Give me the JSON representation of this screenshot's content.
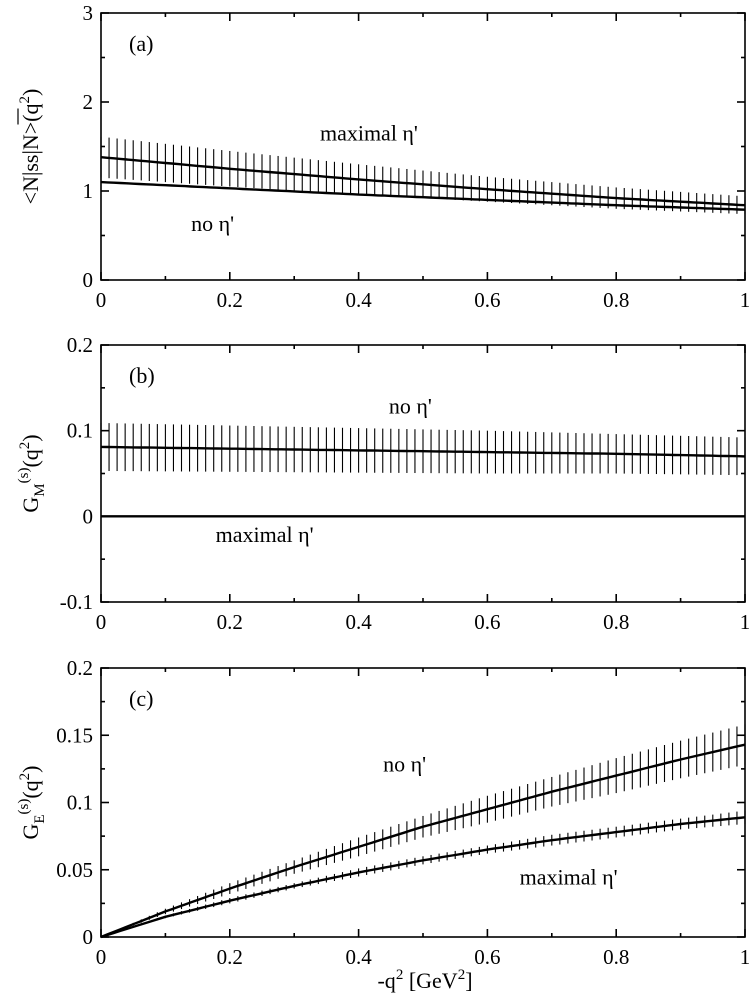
{
  "chart_data": {
    "type": "line",
    "xlabel": {
      "base": "-q",
      "sup": "2",
      "unit_open": " [GeV",
      "unit_sup": "2",
      "unit_close": "]"
    },
    "xlim": [
      0,
      1
    ],
    "x_ticks": [
      "0",
      "0.2",
      "0.4",
      "0.6",
      "0.8",
      "1"
    ],
    "panels": [
      {
        "id": "a",
        "label": "(a)",
        "ylabel": {
          "text": "<N|ss|N>(q",
          "sup": "2",
          "tail": ")"
        },
        "ylim": [
          0,
          3
        ],
        "y_ticks": [
          "0",
          "1",
          "2",
          "3"
        ],
        "zero_line": false,
        "series": [
          {
            "name": "maximal η'",
            "x": [
              0,
              0.2,
              0.4,
              0.6,
              0.8,
              1.0
            ],
            "y": [
              1.38,
              1.25,
              1.13,
              1.02,
              0.92,
              0.84
            ],
            "err": [
              0.23,
              0.2,
              0.17,
              0.14,
              0.12,
              0.1
            ]
          },
          {
            "name": "no η'",
            "x": [
              0,
              0.2,
              0.4,
              0.6,
              0.8,
              1.0
            ],
            "y": [
              1.1,
              1.03,
              0.96,
              0.9,
              0.84,
              0.79
            ],
            "err": [
              0,
              0,
              0,
              0,
              0,
              0
            ]
          }
        ],
        "annotations": [
          {
            "text": "maximal η'",
            "x": 0.34,
            "y": 1.57
          },
          {
            "text": "no η'",
            "x": 0.14,
            "y": 0.55
          }
        ]
      },
      {
        "id": "b",
        "label": "(b)",
        "ylabel": {
          "text": "G",
          "sup": "(s)",
          "sub": "M",
          "tail2": "(q",
          "sup2": "2",
          "tail": ")"
        },
        "ylim": [
          -0.1,
          0.2
        ],
        "y_ticks": [
          "-0.1",
          "0",
          "0.1",
          "0.2"
        ],
        "zero_line": true,
        "series": [
          {
            "name": "no η'",
            "x": [
              0,
              0.2,
              0.4,
              0.6,
              0.8,
              1.0
            ],
            "y": [
              0.081,
              0.079,
              0.077,
              0.075,
              0.073,
              0.07
            ],
            "err": [
              0.028,
              0.027,
              0.026,
              0.025,
              0.023,
              0.022
            ]
          },
          {
            "name": "maximal η'",
            "x": [
              0,
              0.2,
              0.4,
              0.6,
              0.8,
              1.0
            ],
            "y": [
              0,
              0,
              0,
              0,
              0,
              0
            ],
            "err": [
              0,
              0,
              0,
              0,
              0,
              0
            ]
          }
        ],
        "annotations": [
          {
            "text": "no η'",
            "x": 0.447,
            "y": 0.12
          },
          {
            "text": "maximal η'",
            "x": 0.178,
            "y": -0.03
          }
        ]
      },
      {
        "id": "c",
        "label": "(c)",
        "ylabel": {
          "text": "G",
          "sup": "(s)",
          "sub": "E",
          "tail2": "(q",
          "sup2": "2",
          "tail": ")"
        },
        "ylim": [
          0,
          0.2
        ],
        "y_ticks": [
          "0",
          "0.05",
          "0.1",
          "0.15",
          "0.2"
        ],
        "zero_line": false,
        "series": [
          {
            "name": "no η'",
            "x": [
              0,
              0.1,
              0.2,
              0.3,
              0.4,
              0.5,
              0.6,
              0.7,
              0.8,
              0.9,
              1.0
            ],
            "y": [
              0,
              0.019,
              0.036,
              0.052,
              0.067,
              0.082,
              0.095,
              0.108,
              0.12,
              0.132,
              0.143
            ],
            "err": [
              0,
              0.002,
              0.004,
              0.005,
              0.007,
              0.008,
              0.01,
              0.011,
              0.013,
              0.014,
              0.015
            ]
          },
          {
            "name": "maximal η'",
            "x": [
              0,
              0.1,
              0.2,
              0.3,
              0.4,
              0.5,
              0.6,
              0.7,
              0.8,
              0.9,
              1.0
            ],
            "y": [
              0,
              0.015,
              0.027,
              0.038,
              0.048,
              0.057,
              0.065,
              0.072,
              0.078,
              0.084,
              0.089
            ],
            "err": [
              0,
              0.001,
              0.002,
              0.002,
              0.003,
              0.003,
              0.003,
              0.004,
              0.004,
              0.004,
              0.005
            ]
          }
        ],
        "annotations": [
          {
            "text": "no η'",
            "x": 0.438,
            "y": 0.123
          },
          {
            "text": "maximal η'",
            "x": 0.65,
            "y": 0.039
          }
        ]
      }
    ]
  }
}
